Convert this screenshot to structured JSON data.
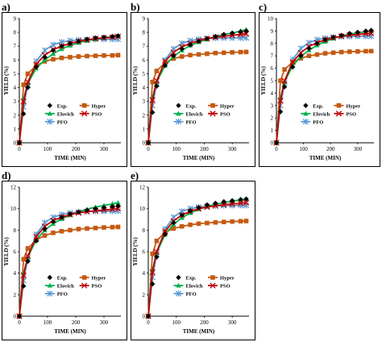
{
  "chart_data": [
    {
      "panel": "a)",
      "type": "line",
      "xlabel": "TIME (MIN)",
      "ylabel": "YIELD (%)",
      "xticks": [
        0,
        100,
        200,
        300
      ],
      "xlim": [
        0,
        360
      ],
      "ylim": [
        0,
        9
      ],
      "yticks": [
        0,
        1,
        2,
        3,
        4,
        5,
        6,
        7,
        8,
        9
      ],
      "legend": [
        "Exp.",
        "Hyper",
        "Elovich",
        "PSO",
        "PFO"
      ],
      "legend_position": "bottom-right",
      "x": [
        0,
        15,
        30,
        60,
        90,
        120,
        150,
        180,
        210,
        240,
        270,
        300,
        330,
        350
      ],
      "series": [
        {
          "name": "Exp.",
          "values": [
            0,
            2.1,
            4.0,
            5.5,
            6.2,
            6.7,
            7.0,
            7.2,
            7.35,
            7.5,
            7.6,
            7.65,
            7.7,
            7.75
          ]
        },
        {
          "name": "Hyper",
          "values": [
            0,
            4.2,
            5.0,
            5.6,
            5.9,
            6.05,
            6.15,
            6.2,
            6.25,
            6.28,
            6.3,
            6.32,
            6.33,
            6.35
          ]
        },
        {
          "name": "Elovich",
          "values": [
            0,
            3.2,
            4.3,
            5.4,
            6.0,
            6.45,
            6.8,
            7.05,
            7.25,
            7.4,
            7.5,
            7.6,
            7.7,
            7.75
          ]
        },
        {
          "name": "PSO",
          "values": [
            0,
            3.0,
            4.4,
            5.7,
            6.35,
            6.75,
            7.0,
            7.2,
            7.35,
            7.45,
            7.55,
            7.6,
            7.65,
            7.7
          ]
        },
        {
          "name": "PFO",
          "values": [
            0,
            2.6,
            4.2,
            5.9,
            6.7,
            7.1,
            7.3,
            7.4,
            7.45,
            7.48,
            7.5,
            7.5,
            7.5,
            7.5
          ]
        }
      ]
    },
    {
      "panel": "b)",
      "type": "line",
      "xlabel": "TIME (MIN)",
      "ylabel": "YIELD (%)",
      "xticks": [
        0,
        100,
        200,
        300
      ],
      "xlim": [
        0,
        360
      ],
      "ylim": [
        0,
        9
      ],
      "yticks": [
        0,
        1,
        2,
        3,
        4,
        5,
        6,
        7,
        8,
        9
      ],
      "legend": [
        "Exp.",
        "Hyper",
        "Elovich",
        "PSO",
        "PFO"
      ],
      "legend_position": "bottom-right",
      "x": [
        0,
        15,
        30,
        60,
        90,
        120,
        150,
        180,
        210,
        240,
        270,
        300,
        330,
        350
      ],
      "series": [
        {
          "name": "Exp.",
          "values": [
            0,
            2.2,
            4.1,
            5.6,
            6.3,
            6.8,
            7.1,
            7.35,
            7.55,
            7.7,
            7.85,
            7.95,
            8.05,
            8.1
          ]
        },
        {
          "name": "Hyper",
          "values": [
            0,
            4.4,
            5.2,
            5.8,
            6.1,
            6.25,
            6.35,
            6.4,
            6.45,
            6.5,
            6.52,
            6.55,
            6.57,
            6.58
          ]
        },
        {
          "name": "Elovich",
          "values": [
            0,
            3.3,
            4.4,
            5.6,
            6.25,
            6.7,
            7.05,
            7.3,
            7.5,
            7.7,
            7.85,
            7.95,
            8.1,
            8.2
          ]
        },
        {
          "name": "PSO",
          "values": [
            0,
            3.1,
            4.5,
            5.9,
            6.55,
            6.95,
            7.2,
            7.4,
            7.55,
            7.65,
            7.72,
            7.78,
            7.85,
            7.9
          ]
        },
        {
          "name": "PFO",
          "values": [
            0,
            2.7,
            4.3,
            6.0,
            6.8,
            7.2,
            7.4,
            7.5,
            7.55,
            7.58,
            7.6,
            7.6,
            7.6,
            7.6
          ]
        }
      ]
    },
    {
      "panel": "c)",
      "type": "line",
      "xlabel": "TIME (MIN)",
      "ylabel": "YIELD (%)",
      "xticks": [
        0,
        100,
        200,
        300
      ],
      "xlim": [
        0,
        360
      ],
      "ylim": [
        0,
        10
      ],
      "yticks": [
        0,
        1,
        2,
        3,
        4,
        5,
        6,
        7,
        8,
        9,
        10
      ],
      "legend": [
        "Exp.",
        "Hyper",
        "Elovich",
        "PSO",
        "PFO"
      ],
      "legend_position": "bottom-right",
      "x": [
        0,
        15,
        30,
        60,
        90,
        120,
        150,
        180,
        210,
        240,
        270,
        300,
        330,
        350
      ],
      "series": [
        {
          "name": "Exp.",
          "values": [
            0,
            2.5,
            4.5,
            6.1,
            7.0,
            7.6,
            8.0,
            8.3,
            8.5,
            8.65,
            8.8,
            8.9,
            9.0,
            9.05
          ]
        },
        {
          "name": "Hyper",
          "values": [
            0,
            5.0,
            5.9,
            6.5,
            6.8,
            7.0,
            7.1,
            7.2,
            7.25,
            7.3,
            7.33,
            7.35,
            7.37,
            7.38
          ]
        },
        {
          "name": "Elovich",
          "values": [
            0,
            3.6,
            4.9,
            6.2,
            6.95,
            7.45,
            7.85,
            8.15,
            8.4,
            8.6,
            8.75,
            8.85,
            8.95,
            9.0
          ]
        },
        {
          "name": "PSO",
          "values": [
            0,
            3.4,
            5.0,
            6.5,
            7.25,
            7.75,
            8.05,
            8.3,
            8.45,
            8.58,
            8.66,
            8.72,
            8.78,
            8.8
          ]
        },
        {
          "name": "PFO",
          "values": [
            0,
            3.0,
            4.8,
            6.7,
            7.6,
            8.05,
            8.3,
            8.42,
            8.5,
            8.54,
            8.56,
            8.57,
            8.58,
            8.58
          ]
        }
      ]
    },
    {
      "panel": "d)",
      "type": "line",
      "xlabel": "TIME (MIN)",
      "ylabel": "YIELD (%)",
      "xticks": [
        0,
        100,
        200,
        300
      ],
      "xlim": [
        0,
        360
      ],
      "ylim": [
        0,
        12
      ],
      "yticks": [
        0,
        2,
        4,
        6,
        8,
        10,
        12
      ],
      "legend": [
        "Exp.",
        "Hyper",
        "Elovich",
        "PSO",
        "PFO"
      ],
      "legend_position": "bottom-right",
      "x": [
        0,
        15,
        30,
        60,
        90,
        120,
        150,
        180,
        210,
        240,
        270,
        300,
        330,
        350
      ],
      "series": [
        {
          "name": "Exp.",
          "values": [
            0,
            2.8,
            5.1,
            7.0,
            8.1,
            8.8,
            9.2,
            9.5,
            9.7,
            9.85,
            10.0,
            10.1,
            10.2,
            10.25
          ]
        },
        {
          "name": "Hyper",
          "values": [
            0,
            5.3,
            6.3,
            7.1,
            7.5,
            7.75,
            7.9,
            8.0,
            8.1,
            8.15,
            8.2,
            8.25,
            8.28,
            8.3
          ]
        },
        {
          "name": "Elovich",
          "values": [
            0,
            4.0,
            5.5,
            7.1,
            8.0,
            8.6,
            9.05,
            9.4,
            9.7,
            9.95,
            10.15,
            10.3,
            10.45,
            10.55
          ]
        },
        {
          "name": "PSO",
          "values": [
            0,
            3.8,
            5.6,
            7.4,
            8.35,
            8.9,
            9.2,
            9.45,
            9.6,
            9.72,
            9.8,
            9.88,
            9.94,
            10.0
          ]
        },
        {
          "name": "PFO",
          "values": [
            0,
            3.3,
            5.4,
            7.6,
            8.7,
            9.2,
            9.45,
            9.6,
            9.68,
            9.72,
            9.75,
            9.76,
            9.77,
            9.78
          ]
        }
      ]
    },
    {
      "panel": "e)",
      "type": "line",
      "xlabel": "TIME (MIN)",
      "ylabel": "YIELD (%)",
      "xticks": [
        0,
        100,
        200,
        300
      ],
      "xlim": [
        0,
        360
      ],
      "ylim": [
        0,
        12
      ],
      "yticks": [
        0,
        2,
        4,
        6,
        8,
        10,
        12
      ],
      "legend": [
        "Exp.",
        "Hyper",
        "Elovich",
        "PSO",
        "PFO"
      ],
      "legend_position": "bottom-right",
      "x": [
        0,
        15,
        30,
        60,
        90,
        120,
        150,
        180,
        210,
        240,
        270,
        300,
        330,
        350
      ],
      "series": [
        {
          "name": "Exp.",
          "values": [
            0,
            3.0,
            5.5,
            7.6,
            8.7,
            9.4,
            9.8,
            10.1,
            10.35,
            10.5,
            10.65,
            10.75,
            10.85,
            10.9
          ]
        },
        {
          "name": "Hyper",
          "values": [
            0,
            5.8,
            7.0,
            7.8,
            8.15,
            8.35,
            8.5,
            8.6,
            8.66,
            8.72,
            8.76,
            8.8,
            8.83,
            8.85
          ]
        },
        {
          "name": "Elovich",
          "values": [
            0,
            4.3,
            5.9,
            7.6,
            8.55,
            9.15,
            9.6,
            9.95,
            10.2,
            10.4,
            10.55,
            10.7,
            10.82,
            10.9
          ]
        },
        {
          "name": "PSO",
          "values": [
            0,
            4.1,
            6.0,
            7.9,
            8.85,
            9.4,
            9.75,
            10.0,
            10.15,
            10.27,
            10.36,
            10.43,
            10.5,
            10.55
          ]
        },
        {
          "name": "PFO",
          "values": [
            0,
            3.6,
            5.8,
            8.1,
            9.2,
            9.75,
            10.0,
            10.15,
            10.22,
            10.26,
            10.28,
            10.29,
            10.3,
            10.3
          ]
        }
      ]
    }
  ],
  "styles": {
    "Exp.": {
      "color": "#000000",
      "marker": "diamond"
    },
    "Hyper": {
      "color": "#c55a11",
      "marker": "square"
    },
    "Elovich": {
      "color": "#00b050",
      "marker": "triangle"
    },
    "PSO": {
      "color": "#c00000",
      "marker": "x"
    },
    "PFO": {
      "color": "#5b9bd5",
      "marker": "asterisk"
    }
  }
}
